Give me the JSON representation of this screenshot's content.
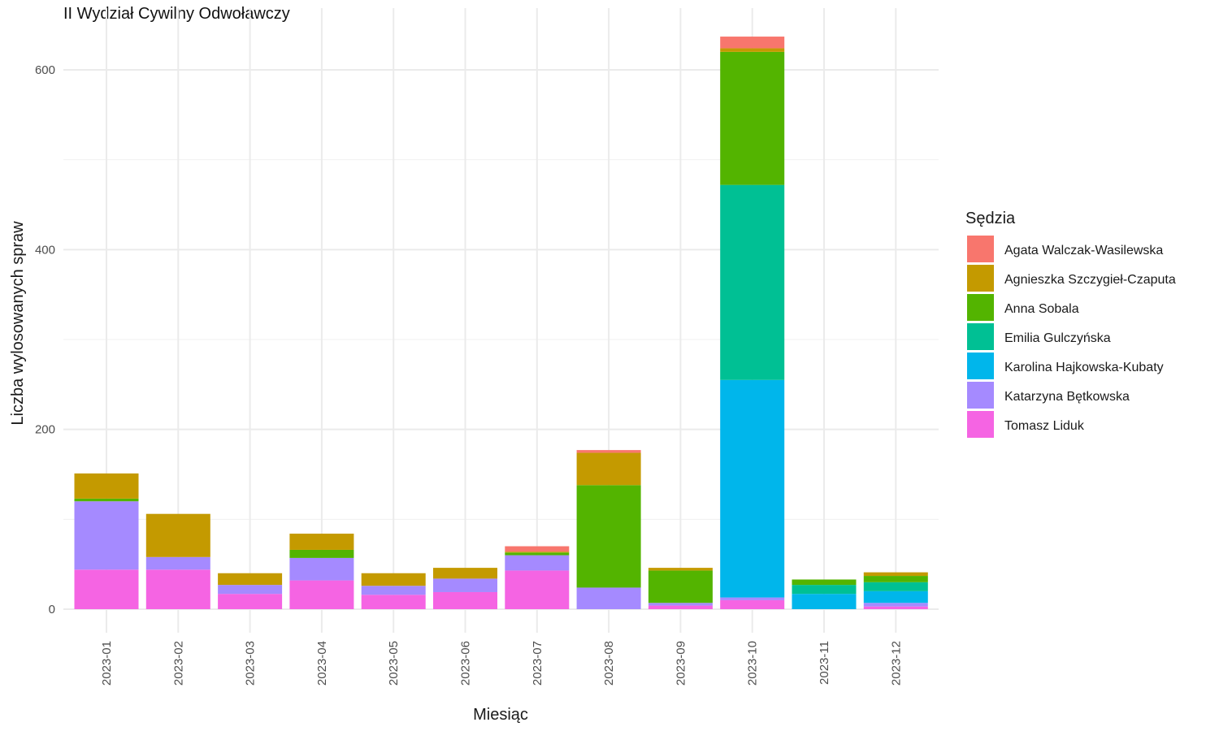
{
  "chart_data": {
    "type": "bar",
    "stacked": true,
    "title": "II Wydział Cywilny Odwoławczy",
    "xlabel": "Miesiąc",
    "ylabel": "Liczba wylosowanych spraw",
    "ylim": [
      0,
      640
    ],
    "yticks": [
      0,
      200,
      400,
      600
    ],
    "grid": true,
    "legend_title": "Sędzia",
    "legend_position": "right",
    "categories": [
      "2023-01",
      "2023-02",
      "2023-03",
      "2023-04",
      "2023-05",
      "2023-06",
      "2023-07",
      "2023-08",
      "2023-09",
      "2023-10",
      "2023-11",
      "2023-12"
    ],
    "series": [
      {
        "name": "Tomasz Liduk",
        "color": "#F564E3",
        "values": [
          44,
          44,
          17,
          32,
          16,
          19,
          43,
          0,
          4,
          10,
          0,
          3
        ]
      },
      {
        "name": "Katarzyna Bętkowska",
        "color": "#A58AFF",
        "values": [
          76,
          14,
          10,
          25,
          10,
          15,
          17,
          24,
          3,
          3,
          0,
          4
        ]
      },
      {
        "name": "Karolina Hajkowska-Kubaty",
        "color": "#00B6EB",
        "values": [
          0,
          0,
          0,
          0,
          0,
          0,
          0,
          0,
          0,
          242,
          17,
          13
        ]
      },
      {
        "name": "Emilia Gulczyńska",
        "color": "#00C094",
        "values": [
          0,
          0,
          0,
          0,
          0,
          0,
          0,
          0,
          0,
          217,
          10,
          10
        ]
      },
      {
        "name": "Anna Sobala",
        "color": "#53B400",
        "values": [
          3,
          0,
          0,
          9,
          0,
          0,
          3,
          114,
          36,
          148,
          6,
          7
        ]
      },
      {
        "name": "Agnieszka Szczygieł-Czaputa",
        "color": "#C49A00",
        "values": [
          28,
          48,
          13,
          18,
          14,
          12,
          1,
          36,
          3,
          4,
          0,
          4
        ]
      },
      {
        "name": "Agata Walczak-Wasilewska",
        "color": "#F8766D",
        "values": [
          0,
          0,
          0,
          0,
          0,
          0,
          6,
          3,
          0,
          13,
          0,
          0
        ]
      }
    ],
    "legend_order": [
      "Agata Walczak-Wasilewska",
      "Agnieszka Szczygieł-Czaputa",
      "Anna Sobala",
      "Emilia Gulczyńska",
      "Karolina Hajkowska-Kubaty",
      "Katarzyna Bętkowska",
      "Tomasz Liduk"
    ]
  }
}
